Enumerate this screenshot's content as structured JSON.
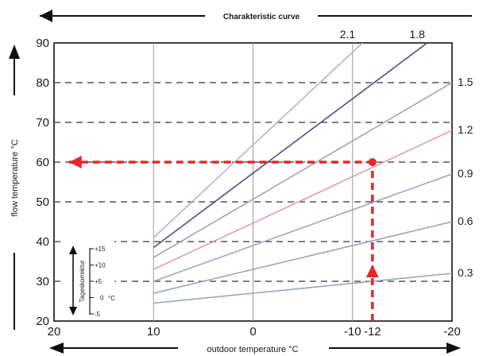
{
  "chart_data": {
    "type": "line",
    "title": "Charakteristic curve",
    "xlabel": "outdoor temperature °C",
    "ylabel": "flow temperature °C",
    "x_axis_direction": "reversed",
    "xlim": [
      20,
      -20
    ],
    "ylim": [
      20,
      90
    ],
    "x_ticks": [
      20,
      10,
      0,
      -10,
      -12,
      -20
    ],
    "x_tick_labels": [
      "20",
      "10",
      "0",
      "-10",
      "-12",
      "-20"
    ],
    "y_ticks": [
      20,
      30,
      40,
      50,
      60,
      70,
      80,
      90
    ],
    "y_tick_labels": [
      "20",
      "30",
      "40",
      "50",
      "60",
      "70",
      "80",
      "90"
    ],
    "grid": {
      "vertical": [
        10,
        0,
        -10
      ],
      "horizontal_dashed": [
        30,
        40,
        50,
        60,
        70,
        80
      ]
    },
    "series": [
      {
        "name": "0.3",
        "color": "#9aa4c0",
        "x": [
          10,
          -20
        ],
        "y": [
          24.5,
          32
        ]
      },
      {
        "name": "0.6",
        "color": "#9aa4c0",
        "x": [
          10,
          -20
        ],
        "y": [
          27,
          45
        ]
      },
      {
        "name": "0.9",
        "color": "#9aa4c0",
        "x": [
          10,
          -20
        ],
        "y": [
          30,
          57
        ]
      },
      {
        "name": "1.2",
        "color": "#e69aa8",
        "x": [
          10,
          -20
        ],
        "y": [
          33,
          68
        ]
      },
      {
        "name": "1.5",
        "color": "#9aa4c0",
        "x": [
          10,
          -20
        ],
        "y": [
          36,
          80
        ]
      },
      {
        "name": "1.8",
        "color": "#44508a",
        "x": [
          10,
          -17.5
        ],
        "y": [
          38.5,
          90
        ]
      },
      {
        "name": "2.1",
        "color": "#b0b5cf",
        "x": [
          10,
          -11
        ],
        "y": [
          41,
          90
        ]
      }
    ],
    "top_labels": [
      "2.1",
      "1.8"
    ],
    "right_labels": [
      "1.5",
      "1.2",
      "0.9",
      "0.6",
      "0.3"
    ],
    "example": {
      "outdoor": -12,
      "flow": 60,
      "color": "#e8262a",
      "vertical_from": 20,
      "horizontal_to": 18.5
    },
    "day_correction": {
      "label": "Tageskorrektur",
      "unit": "°C",
      "ticks": [
        "+15",
        "+10",
        "+5",
        "0",
        "-5"
      ]
    }
  }
}
